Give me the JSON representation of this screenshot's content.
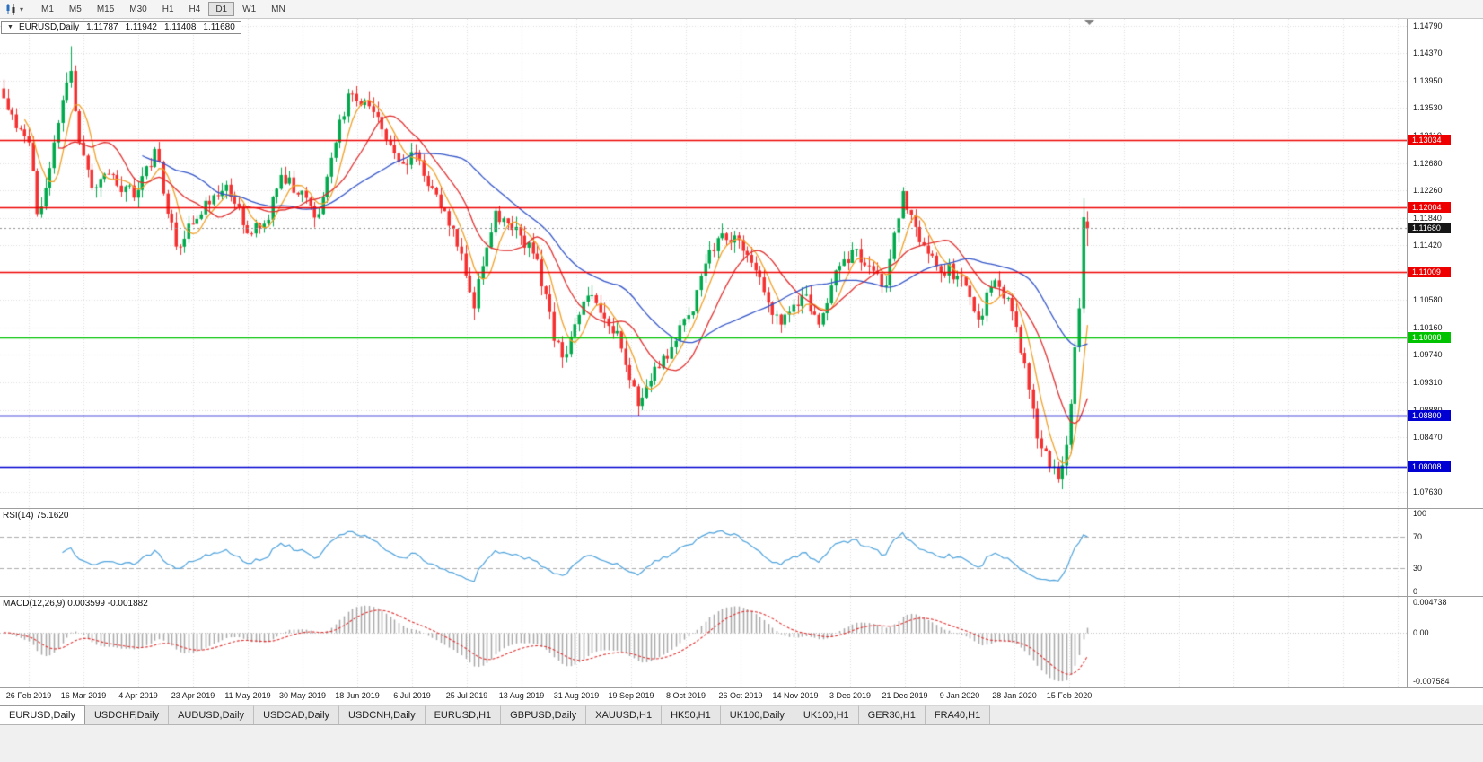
{
  "toolbar": {
    "timeframes": [
      {
        "label": "M1",
        "active": false
      },
      {
        "label": "M5",
        "active": false
      },
      {
        "label": "M15",
        "active": false
      },
      {
        "label": "M30",
        "active": false
      },
      {
        "label": "H1",
        "active": false
      },
      {
        "label": "H4",
        "active": false
      },
      {
        "label": "D1",
        "active": true
      },
      {
        "label": "W1",
        "active": false
      },
      {
        "label": "MN",
        "active": false
      }
    ]
  },
  "chart_header": {
    "collapse_icon": "▼",
    "symbol": "EURUSD,Daily",
    "open": "1.11787",
    "high": "1.11942",
    "low": "1.11408",
    "close": "1.11680"
  },
  "price_axis": {
    "ticks": [
      {
        "label": "1.14790",
        "value": 1.1479
      },
      {
        "label": "1.14370",
        "value": 1.1437
      },
      {
        "label": "1.13950",
        "value": 1.1395
      },
      {
        "label": "1.13530",
        "value": 1.1353
      },
      {
        "label": "1.13110",
        "value": 1.1311
      },
      {
        "label": "1.12680",
        "value": 1.1268
      },
      {
        "label": "1.12260",
        "value": 1.1226
      },
      {
        "label": "1.11840",
        "value": 1.1184
      },
      {
        "label": "1.11420",
        "value": 1.1142
      },
      {
        "label": "1.10580",
        "value": 1.1058
      },
      {
        "label": "1.10160",
        "value": 1.1016
      },
      {
        "label": "1.09740",
        "value": 1.0974
      },
      {
        "label": "1.09310",
        "value": 1.0931
      },
      {
        "label": "1.08880",
        "value": 1.0888
      },
      {
        "label": "1.08470",
        "value": 1.0847
      },
      {
        "label": "1.07630",
        "value": 1.0763
      }
    ],
    "level_labels": [
      {
        "label": "1.13034",
        "value": 1.13034,
        "bg": "#EE0000"
      },
      {
        "label": "1.12004",
        "value": 1.12004,
        "bg": "#EE0000"
      },
      {
        "label": "1.11680",
        "value": 1.1168,
        "bg": "#151515"
      },
      {
        "label": "1.11009",
        "value": 1.11009,
        "bg": "#EE0000"
      },
      {
        "label": "1.10008",
        "value": 1.10008,
        "bg": "#00C300"
      },
      {
        "label": "1.08800",
        "value": 1.088,
        "bg": "#0000D2"
      },
      {
        "label": "1.08008",
        "value": 1.08008,
        "bg": "#0000D2"
      }
    ]
  },
  "date_axis": [
    "26 Feb 2019",
    "16 Mar 2019",
    "4 Apr 2019",
    "23 Apr 2019",
    "11 May 2019",
    "30 May 2019",
    "18 Jun 2019",
    "6 Jul 2019",
    "25 Jul 2019",
    "13 Aug 2019",
    "31 Aug 2019",
    "19 Sep 2019",
    "8 Oct 2019",
    "26 Oct 2019",
    "14 Nov 2019",
    "3 Dec 2019",
    "21 Dec 2019",
    "9 Jan 2020",
    "28 Jan 2020",
    "15 Feb 2020"
  ],
  "rsi_panel": {
    "label": "RSI(14) 75.1620",
    "axis_labels": [
      {
        "label": "100",
        "value": 100
      },
      {
        "label": "70",
        "value": 70
      },
      {
        "label": "30",
        "value": 30
      },
      {
        "label": "0",
        "value": 0
      }
    ]
  },
  "macd_panel": {
    "label": "MACD(12,26,9) 0.003599 -0.001882",
    "axis_labels": [
      {
        "label": "0.004738",
        "value": 0.004738
      },
      {
        "label": "0.00",
        "value": 0
      },
      {
        "label": "-0.007584",
        "value": -0.007584
      }
    ]
  },
  "tabs": [
    {
      "label": "EURUSD,Daily",
      "active": true
    },
    {
      "label": "USDCHF,Daily",
      "active": false
    },
    {
      "label": "AUDUSD,Daily",
      "active": false
    },
    {
      "label": "USDCAD,Daily",
      "active": false
    },
    {
      "label": "USDCNH,Daily",
      "active": false
    },
    {
      "label": "EURUSD,H1",
      "active": false
    },
    {
      "label": "GBPUSD,Daily",
      "active": false
    },
    {
      "label": "XAUUSD,H1",
      "active": false
    },
    {
      "label": "HK50,H1",
      "active": false
    },
    {
      "label": "UK100,Daily",
      "active": false
    },
    {
      "label": "UK100,H1",
      "active": false
    },
    {
      "label": "GER30,H1",
      "active": false
    },
    {
      "label": "FRA40,H1",
      "active": false
    }
  ],
  "chart_data": {
    "type": "candlestick",
    "title": "EURUSD,Daily",
    "x_range_dates": [
      "26 Feb 2019",
      "4 Mar 2020"
    ],
    "price_range": [
      1.0738,
      1.149
    ],
    "candle_count": 259,
    "close_path": [
      [
        0,
        1.1368
      ],
      [
        4,
        1.132
      ],
      [
        6,
        1.13
      ],
      [
        8,
        1.119
      ],
      [
        10,
        1.123
      ],
      [
        13,
        1.133
      ],
      [
        16,
        1.141
      ],
      [
        18,
        1.13
      ],
      [
        21,
        1.123
      ],
      [
        26,
        1.125
      ],
      [
        31,
        1.1215
      ],
      [
        36,
        1.129
      ],
      [
        41,
        1.114
      ],
      [
        44,
        1.1175
      ],
      [
        49,
        1.1205
      ],
      [
        53,
        1.1235
      ],
      [
        58,
        1.116
      ],
      [
        62,
        1.1175
      ],
      [
        66,
        1.125
      ],
      [
        70,
        1.122
      ],
      [
        75,
        1.119
      ],
      [
        79,
        1.13
      ],
      [
        82,
        1.1375
      ],
      [
        86,
        1.1365
      ],
      [
        90,
        1.132
      ],
      [
        94,
        1.127
      ],
      [
        98,
        1.1285
      ],
      [
        103,
        1.122
      ],
      [
        108,
        1.114
      ],
      [
        111,
        1.107
      ],
      [
        112,
        1.1045
      ],
      [
        114,
        1.111
      ],
      [
        117,
        1.1195
      ],
      [
        122,
        1.117
      ],
      [
        127,
        1.112
      ],
      [
        131,
        1.0995
      ],
      [
        134,
        1.0975
      ],
      [
        137,
        1.1035
      ],
      [
        140,
        1.1065
      ],
      [
        146,
        1.101
      ],
      [
        149,
        1.0935
      ],
      [
        151,
        1.0895
      ],
      [
        155,
        1.0955
      ],
      [
        159,
        1.0985
      ],
      [
        164,
        1.104
      ],
      [
        168,
        1.1135
      ],
      [
        171,
        1.116
      ],
      [
        175,
        1.115
      ],
      [
        178,
        1.1115
      ],
      [
        181,
        1.107
      ],
      [
        185,
        1.102
      ],
      [
        190,
        1.1065
      ],
      [
        194,
        1.102
      ],
      [
        197,
        1.108
      ],
      [
        202,
        1.1135
      ],
      [
        206,
        1.111
      ],
      [
        210,
        1.108
      ],
      [
        214,
        1.1225
      ],
      [
        217,
        1.117
      ],
      [
        222,
        1.111
      ],
      [
        227,
        1.1095
      ],
      [
        232,
        1.1028
      ],
      [
        236,
        1.1088
      ],
      [
        240,
        1.104
      ],
      [
        243,
        1.096
      ],
      [
        246,
        1.0845
      ],
      [
        249,
        1.08
      ],
      [
        251,
        1.0782
      ],
      [
        253,
        1.0835
      ],
      [
        255,
        1.0985
      ],
      [
        256,
        1.1045
      ],
      [
        257,
        1.1185
      ],
      [
        258,
        1.1168
      ]
    ],
    "extremes": [
      {
        "i": 16,
        "high": 1.1448
      },
      {
        "i": 112,
        "low": 1.1027
      },
      {
        "i": 151,
        "low": 1.0879
      },
      {
        "i": 251,
        "low": 1.0777
      },
      {
        "i": 257,
        "high": 1.1214
      }
    ],
    "last_candle": {
      "open": 1.11787,
      "high": 1.11942,
      "low": 1.11408,
      "close": 1.1168
    },
    "horizontal_lines": [
      {
        "price": 1.13034,
        "color": "#EE0000"
      },
      {
        "price": 1.12004,
        "color": "#EE0000"
      },
      {
        "price": 1.11009,
        "color": "#EE0000"
      },
      {
        "price": 1.10008,
        "color": "#00C300"
      },
      {
        "price": 1.088,
        "color": "#0000D2"
      },
      {
        "price": 1.08008,
        "color": "#0000D2"
      }
    ],
    "current_price": 1.1168,
    "moving_averages": [
      {
        "period": 6,
        "color": "#F0A028"
      },
      {
        "period": 14,
        "color": "#E03030"
      },
      {
        "period": 34,
        "color": "#3355C8"
      }
    ],
    "indicators": {
      "rsi": {
        "period": 14,
        "current": 75.162,
        "guide_levels": [
          70,
          30
        ],
        "range": [
          0,
          100
        ]
      },
      "macd": {
        "fast": 12,
        "slow": 26,
        "signal_period": 9,
        "macd_value": 0.003599,
        "signal_value": -0.001882,
        "scale": [
          -0.007584,
          0.004738
        ]
      }
    },
    "colors": {
      "up": "#00A94C",
      "down": "#F53030",
      "grid": "#DEDEDE",
      "rsi_line": "#4FA3DC",
      "macd_hist": "#A8A8A8",
      "macd_signal": "#E03030",
      "current_price_line": "#909090"
    }
  }
}
